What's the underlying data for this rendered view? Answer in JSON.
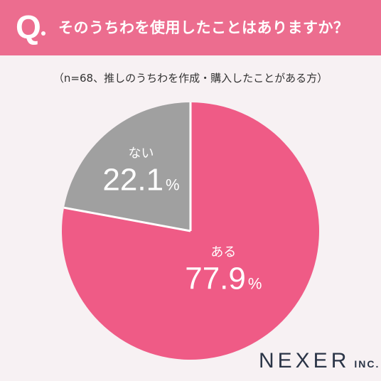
{
  "header": {
    "q_mark": "Q",
    "question": "そのうちわを使用したことはありますか？"
  },
  "sample_note": "（n=68、推しのうちわを作成・購入したことがある方）",
  "chart_data": {
    "type": "pie",
    "title": "",
    "slices": [
      {
        "label": "ある",
        "value": 77.9,
        "display": "77.9",
        "unit": "%",
        "color": "#ef5b86"
      },
      {
        "label": "ない",
        "value": 22.1,
        "display": "22.1",
        "unit": "%",
        "color": "#a0a0a0"
      }
    ],
    "start": "12 o'clock",
    "direction": "clockwise",
    "separator_color": "#ffffff"
  },
  "logo": {
    "main": "NEXER",
    "suffix": "INC."
  }
}
